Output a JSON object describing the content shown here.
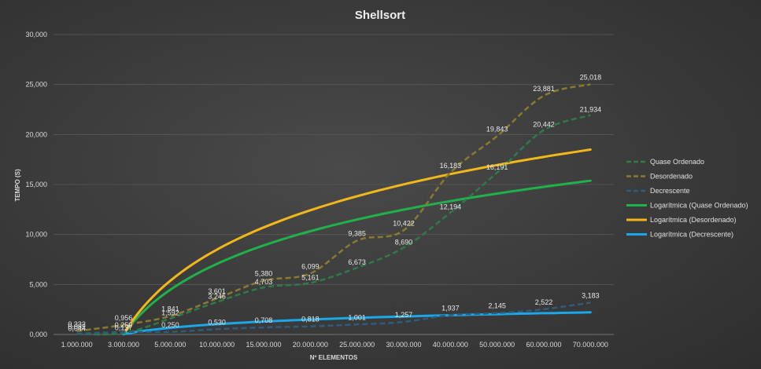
{
  "chart_data": {
    "type": "line",
    "title": "Shellsort",
    "xlabel": "Nº ELEMENTOS",
    "ylabel": "TEMPO (S)",
    "ylim": [
      0,
      30
    ],
    "yticks": [
      "0,000",
      "5,000",
      "10,000",
      "15,000",
      "20,000",
      "25,000",
      "30,000"
    ],
    "categories": [
      "1.000.000",
      "3.000.000",
      "5.000.000",
      "10.000.000",
      "15.000.000",
      "20.000.000",
      "25.000.000",
      "30.000.000",
      "40.000.000",
      "50.000.000",
      "60.000.000",
      "70.000.000"
    ],
    "grid": true,
    "legend_position": "right",
    "series": [
      {
        "name": "Quase Ordenado",
        "style": "dashed",
        "color": "#2e7a4a",
        "values": [
          0.044,
          0.137,
          1.592,
          3.246,
          4.703,
          5.161,
          6.673,
          8.69,
          12.194,
          16.191,
          20.442,
          21.934
        ],
        "labels": [
          "0,044",
          "0,137",
          "1,592",
          "3,246",
          "4,703",
          "5,161",
          "6,673",
          "8,690",
          "12,194",
          "16,191",
          "20,442",
          "21,934"
        ]
      },
      {
        "name": "Desordenado",
        "style": "dashed",
        "color": "#8a7a2e",
        "values": [
          0.332,
          0.956,
          1.841,
          3.601,
          5.38,
          6.099,
          9.385,
          10.422,
          16.183,
          19.843,
          23.881,
          25.018
        ],
        "labels": [
          "0,332",
          "0,956",
          "1,841",
          "3,601",
          "5,380",
          "6,099",
          "9,385",
          "10,422",
          "16,183",
          "19,843",
          "23,881",
          "25,018"
        ]
      },
      {
        "name": "Decrescente",
        "style": "dashed",
        "color": "#2e5c7a",
        "values": [
          0.082,
          0.25,
          0.25,
          0.53,
          0.708,
          0.818,
          1.001,
          1.257,
          1.937,
          2.145,
          2.522,
          3.183
        ],
        "labels": [
          "0,082",
          "0,250",
          "0,250",
          "0,530",
          "0,708",
          "0,818",
          "1,001",
          "1,257",
          "1,937",
          "2,145",
          "2,522",
          "3,183"
        ]
      },
      {
        "name": "Logarítmica (Quase Ordenado)",
        "style": "solid",
        "color": "#1fb24a",
        "trend": {
          "type": "log",
          "coeff": 6.4,
          "offset": 0.03
        }
      },
      {
        "name": "Logarítmica (Desordenado)",
        "style": "solid",
        "color": "#f2b81a",
        "trend": {
          "type": "log",
          "coeff": 7.7,
          "offset": 0.03
        }
      },
      {
        "name": "Logarítmica (Decrescente)",
        "style": "solid",
        "color": "#1aa8e6",
        "trend": {
          "type": "log",
          "coeff": 0.91,
          "offset": 0.03
        }
      }
    ]
  }
}
